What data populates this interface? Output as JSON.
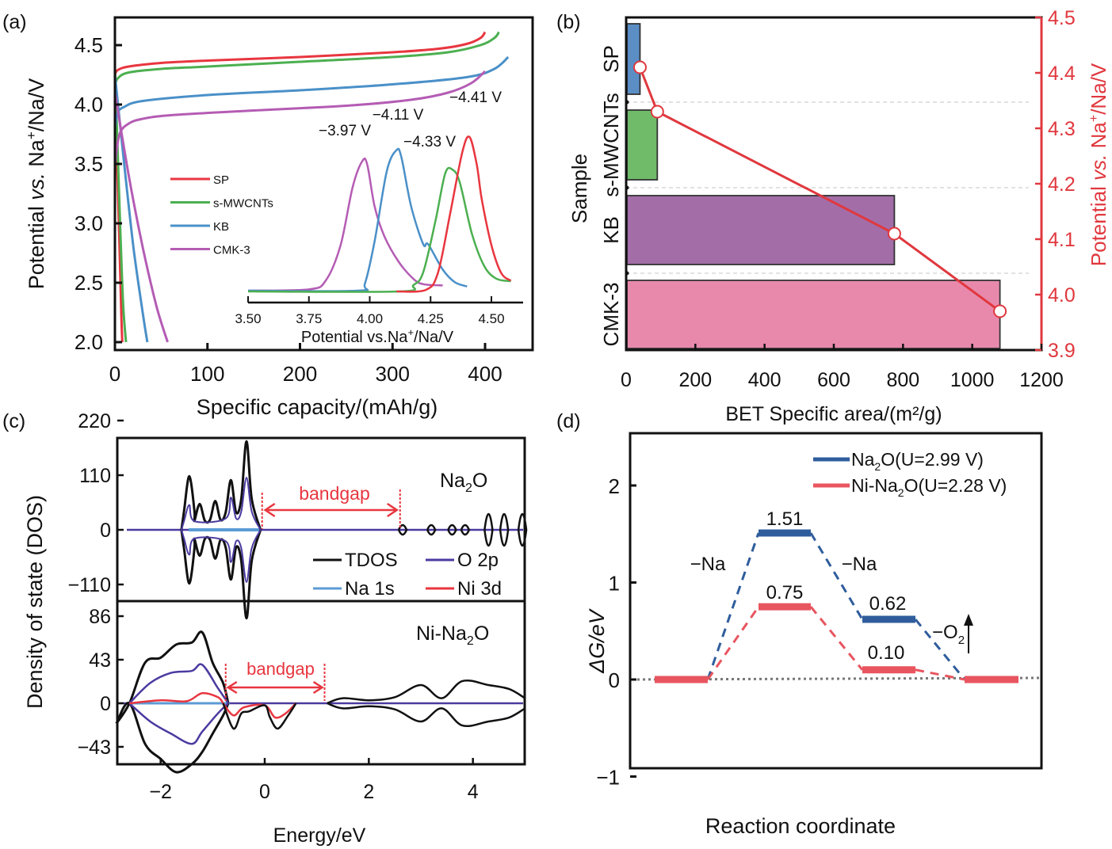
{
  "figure": {
    "panel_labels": [
      "(a)",
      "(b)",
      "(c)",
      "(d)"
    ]
  },
  "chart_data": [
    {
      "panel": "(a)",
      "type": "line",
      "title": "",
      "xlabel": "Specific capacity/(mAh/g)",
      "ylabel_parts": [
        "Potential ",
        "vs.",
        " Na",
        "+",
        "/Na/V"
      ],
      "xlim": [
        0,
        450
      ],
      "ylim": [
        1.9,
        4.7
      ],
      "xticks": [
        0,
        100,
        200,
        300,
        400
      ],
      "yticks": [
        2.0,
        2.5,
        3.0,
        3.5,
        4.0,
        4.5
      ],
      "ytick_labels": [
        "2.0",
        "2.5",
        "3.0",
        "3.5",
        "4.0",
        "4.5"
      ],
      "legend": {
        "placement": "center-left",
        "entries": [
          "SP",
          "s-MWCNTs",
          "KB",
          "CMK-3"
        ]
      },
      "series": [
        {
          "name": "SP",
          "color": "#e8363f",
          "charge": {
            "x": [
              0,
              3,
              15,
              50,
              100,
              200,
              300,
              350,
              380,
              395,
              400
            ],
            "y": [
              4.25,
              4.29,
              4.32,
              4.35,
              4.37,
              4.4,
              4.44,
              4.47,
              4.51,
              4.56,
              4.61
            ]
          },
          "discharge": {
            "x": [
              0,
              2,
              5,
              7,
              8
            ],
            "y": [
              4.3,
              3.6,
              2.8,
              2.2,
              2.0
            ]
          }
        },
        {
          "name": "s-MWCNTs",
          "color": "#4caf50",
          "charge": {
            "x": [
              0,
              3,
              15,
              50,
              100,
              200,
              300,
              360,
              395,
              410,
              415
            ],
            "y": [
              4.15,
              4.22,
              4.27,
              4.3,
              4.32,
              4.36,
              4.4,
              4.44,
              4.5,
              4.56,
              4.61
            ]
          },
          "discharge": {
            "x": [
              0,
              3,
              6,
              9,
              12
            ],
            "y": [
              4.3,
              3.6,
              2.9,
              2.3,
              2.0
            ]
          }
        },
        {
          "name": "KB",
          "color": "#4a90c8",
          "charge": {
            "x": [
              0,
              3,
              10,
              30,
              100,
              200,
              300,
              380,
              410,
              425
            ],
            "y": [
              3.8,
              3.93,
              3.98,
              4.03,
              4.08,
              4.12,
              4.17,
              4.23,
              4.3,
              4.4
            ]
          },
          "discharge": {
            "x": [
              0,
              10,
              20,
              30,
              35
            ],
            "y": [
              4.25,
              3.5,
              2.8,
              2.25,
              2.0
            ]
          }
        },
        {
          "name": "CMK-3",
          "color": "#b45cb4",
          "charge": {
            "x": [
              0,
              5,
              15,
              30,
              60,
              150,
              250,
              320,
              360,
              385,
              400
            ],
            "y": [
              3.5,
              3.75,
              3.84,
              3.88,
              3.91,
              3.95,
              3.99,
              4.04,
              4.1,
              4.18,
              4.28
            ]
          },
          "discharge": {
            "x": [
              0,
              15,
              30,
              45,
              57
            ],
            "y": [
              4.1,
              3.4,
              2.8,
              2.3,
              2.0
            ]
          }
        }
      ],
      "inset": {
        "type": "line",
        "xlabel_parts": [
          "Potential vs.Na",
          "+",
          "/Na/V"
        ],
        "xticks": [
          3.5,
          3.75,
          4.0,
          4.25,
          4.5
        ],
        "xtick_labels": [
          "3.50",
          "3.75",
          "4.00",
          "4.25",
          "4.50"
        ],
        "xlim": [
          3.5,
          4.6
        ],
        "peaks": [
          {
            "name": "CMK-3",
            "peak_potential": 3.97,
            "label": "−3.97 V",
            "color": "#b45cb4"
          },
          {
            "name": "KB",
            "peak_potential": 4.11,
            "label": "−4.11 V",
            "color": "#4a90c8"
          },
          {
            "name": "s-MWCNTs",
            "peak_potential": 4.33,
            "label": "−4.33 V",
            "color": "#4caf50"
          },
          {
            "name": "SP",
            "peak_potential": 4.41,
            "label": "−4.41 V",
            "color": "#e8363f"
          }
        ],
        "curves": [
          {
            "name": "CMK-3",
            "color": "#b45cb4",
            "x": [
              3.5,
              3.75,
              3.82,
              3.88,
              3.93,
              3.97,
              3.99,
              4.02,
              4.06,
              4.12,
              4.18,
              4.22,
              4.3
            ],
            "y": [
              0.0,
              0.01,
              0.08,
              0.35,
              0.8,
              1.0,
              0.97,
              0.65,
              0.42,
              0.22,
              0.09,
              0.05,
              0.04
            ]
          },
          {
            "name": "KB",
            "color": "#4a90c8",
            "x": [
              3.5,
              3.95,
              3.98,
              4.02,
              4.07,
              4.11,
              4.13,
              4.17,
              4.22,
              4.24,
              4.3,
              4.35,
              4.4
            ],
            "y": [
              0.0,
              0.0,
              0.05,
              0.35,
              0.85,
              1.0,
              0.95,
              0.6,
              0.33,
              0.33,
              0.15,
              0.06,
              0.03
            ]
          },
          {
            "name": "s-MWCNTs",
            "color": "#4caf50",
            "x": [
              3.5,
              4.12,
              4.18,
              4.22,
              4.27,
              4.31,
              4.34,
              4.37,
              4.42,
              4.47,
              4.52,
              4.58
            ],
            "y": [
              0.0,
              0.0,
              0.05,
              0.15,
              0.55,
              0.92,
              0.95,
              0.85,
              0.45,
              0.2,
              0.1,
              0.08
            ]
          },
          {
            "name": "SP",
            "color": "#e8363f",
            "x": [
              4.11,
              4.23,
              4.28,
              4.33,
              4.38,
              4.41,
              4.44,
              4.46,
              4.5,
              4.54,
              4.58
            ],
            "y": [
              0.0,
              0.01,
              0.12,
              0.5,
              0.9,
              1.0,
              0.82,
              0.6,
              0.3,
              0.12,
              0.07
            ]
          }
        ]
      }
    },
    {
      "panel": "(b)",
      "type": "bar",
      "orientation": "horizontal",
      "title": "",
      "xlabel": "BET Specific area/(m²/g)",
      "ylabel": "Sample",
      "y2label_parts": [
        "Potential ",
        "vs.",
        " Na",
        "+",
        "/Na/V"
      ],
      "xlim": [
        0,
        1200
      ],
      "xticks": [
        0,
        200,
        400,
        600,
        800,
        1000,
        1200
      ],
      "y2lim": [
        3.9,
        4.5
      ],
      "y2ticks": [
        3.9,
        4.0,
        4.1,
        4.2,
        4.3,
        4.4,
        4.5
      ],
      "y2tick_labels": [
        "3.9",
        "4.0",
        "4.1",
        "4.2",
        "4.3",
        "4.4",
        "4.5"
      ],
      "categories": [
        "SP",
        "s-MWCNTs",
        "KB",
        "CMK-3"
      ],
      "values": [
        40,
        90,
        775,
        1080
      ],
      "bar_colors": [
        "#5b8ec5",
        "#6fbb6a",
        "#a36da8",
        "#e889ac"
      ],
      "line_series": {
        "name": "Potential",
        "color": "#e0383e",
        "bet": [
          40,
          90,
          775,
          1080
        ],
        "potential": [
          4.41,
          4.33,
          4.11,
          3.97
        ]
      },
      "grid": "horizontal dashed separators"
    },
    {
      "panel": "(c)",
      "type": "line",
      "title": "",
      "xlabel": "Energy/eV",
      "ylabel": "Density of state (DOS)",
      "xlim": [
        -2.85,
        5.0
      ],
      "xticks": [
        -2,
        0,
        2,
        4
      ],
      "xtick_labels": [
        "−2",
        "0",
        "2",
        "4"
      ],
      "legend": {
        "placement": "bottom-right of upper subplot",
        "entries": [
          {
            "name": "TDOS",
            "color": "#111111"
          },
          {
            "name": "O 2p",
            "color": "#4b3aa0"
          },
          {
            "name": "Na 1s",
            "color": "#5b9bd5"
          },
          {
            "name": "Ni 3d",
            "color": "#e8363f"
          }
        ]
      },
      "subplots": [
        {
          "label_main": "Na",
          "label_sub": "2",
          "label_tail": "O",
          "yticks": [
            220,
            110,
            0,
            -110
          ],
          "ytick_labels": [
            "220",
            "110",
            "0",
            "−110"
          ],
          "ylim": [
            -190,
            245
          ],
          "bandgap": {
            "label": "bandgap",
            "from": -0.05,
            "to": 2.6
          },
          "tdos_peaks": [
            {
              "x": -1.45,
              "y": 108
            },
            {
              "x": -1.25,
              "y": 52
            },
            {
              "x": -0.95,
              "y": 58
            },
            {
              "x": -0.65,
              "y": 100
            },
            {
              "x": -0.35,
              "y": 178
            }
          ],
          "o2p_peaks": [
            {
              "x": -1.45,
              "y": 50
            },
            {
              "x": -0.65,
              "y": 65
            },
            {
              "x": -0.35,
              "y": 105
            }
          ],
          "cb_blips": [
            2.65,
            3.2,
            3.6,
            3.85,
            4.3,
            4.6,
            4.95
          ]
        },
        {
          "label_main": "Ni-Na",
          "label_sub": "2",
          "label_tail": "O",
          "yticks": [
            86,
            43,
            0,
            -43
          ],
          "ytick_labels": [
            "86",
            "43",
            "0",
            "−43"
          ],
          "ylim": [
            -78,
            92
          ],
          "bandgap": {
            "label": "bandgap",
            "from": -0.75,
            "to": 1.15
          },
          "tdos_upper": {
            "x": [
              -2.85,
              -2.6,
              -2.3,
              -2.0,
              -1.7,
              -1.4,
              -1.2,
              -1.0,
              -0.8,
              -0.7
            ],
            "y": [
              -20,
              0,
              40,
              45,
              58,
              60,
              70,
              40,
              20,
              0
            ]
          },
          "tdos_lower": {
            "x": [
              -2.85,
              -2.6,
              -2.3,
              -2.0,
              -1.7,
              -1.4,
              -1.2,
              -1.0,
              -0.8,
              -0.7
            ],
            "y": [
              -20,
              0,
              -40,
              -55,
              -68,
              -60,
              -48,
              -30,
              -12,
              0
            ]
          },
          "o2p_upper": {
            "x": [
              -2.6,
              -2.2,
              -1.8,
              -1.4,
              -1.2,
              -0.9,
              -0.7
            ],
            "y": [
              0,
              20,
              30,
              32,
              38,
              15,
              0
            ]
          },
          "o2p_lower": {
            "x": [
              -2.6,
              -2.2,
              -1.8,
              -1.4,
              -1.2,
              -0.9,
              -0.7
            ],
            "y": [
              0,
              -18,
              -30,
              -40,
              -28,
              -10,
              0
            ]
          }
        }
      ]
    },
    {
      "panel": "(d)",
      "type": "line",
      "subtype": "energy-profile",
      "title": "",
      "xlabel": "Reaction coordinate",
      "ylabel": "ΔG/eV",
      "ylim": [
        -1,
        2.5
      ],
      "yticks": [
        -1,
        0,
        1,
        2
      ],
      "ytick_labels": [
        "−1",
        "0",
        "1",
        "2"
      ],
      "legend": {
        "placement": "top-right",
        "entries": [
          {
            "name_parts": [
              "Na",
              "2",
              "O(U=2.99 V)"
            ],
            "color": "#2f5d9c"
          },
          {
            "name_parts": [
              "Ni-Na",
              "2",
              "O(U=2.28 V)"
            ],
            "color": "#e8555f"
          }
        ]
      },
      "series": [
        {
          "name": "Na2O(U=2.99 V)",
          "color": "#2f5d9c",
          "steps": [
            0,
            1.51,
            0.62,
            0
          ]
        },
        {
          "name": "Ni-Na2O(U=2.28 V)",
          "color": "#e8555f",
          "steps": [
            0,
            0.75,
            0.1,
            0
          ]
        }
      ],
      "annotations": [
        {
          "text": "1.51"
        },
        {
          "text": "0.75"
        },
        {
          "text": "0.62"
        },
        {
          "text": "0.10"
        },
        {
          "text": "−Na"
        },
        {
          "text": "−Na"
        },
        {
          "text_main": "−O",
          "text_sub": "2"
        }
      ]
    }
  ]
}
